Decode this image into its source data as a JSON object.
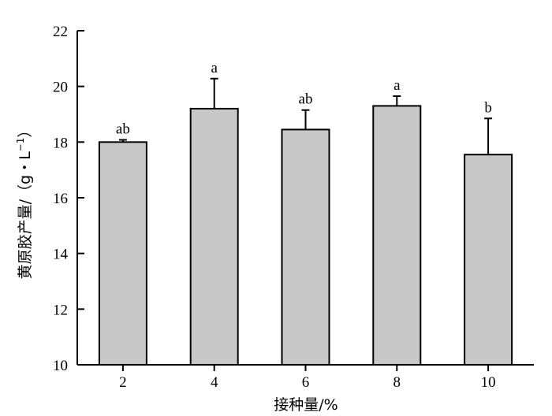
{
  "chart_data": {
    "type": "bar",
    "xlabel": "接种量/%",
    "ylabel_main": "黄原胶产量/（g・L",
    "ylabel_sup": "−1",
    "ylabel_close": "）",
    "categories": [
      "2",
      "4",
      "6",
      "8",
      "10"
    ],
    "values": [
      18.0,
      19.2,
      18.45,
      19.3,
      17.55
    ],
    "errors": [
      0.08,
      1.08,
      0.7,
      0.35,
      1.3
    ],
    "significance": [
      "ab",
      "a",
      "ab",
      "a",
      "b"
    ],
    "ylim": [
      10,
      22
    ],
    "yticks": [
      10,
      12,
      14,
      16,
      18,
      20,
      22
    ],
    "grid": false,
    "colors": {
      "bar_fill": "#c8c8c8",
      "bar_stroke": "#000000",
      "axis": "#000000"
    }
  }
}
